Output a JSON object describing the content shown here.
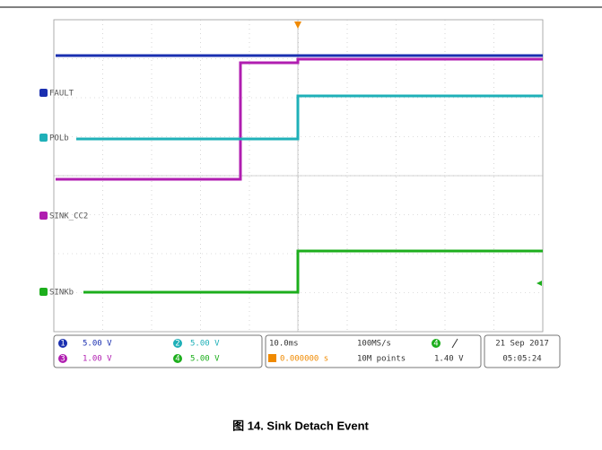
{
  "channels": [
    {
      "number": "1",
      "label": "FAULT",
      "scale": "5.00 V"
    },
    {
      "number": "2",
      "label": "POLb",
      "scale": "5.00 V"
    },
    {
      "number": "3",
      "label": "SINK_CC2",
      "scale": "1.00 V"
    },
    {
      "number": "4",
      "label": "SINKb",
      "scale": "5.00 V"
    }
  ],
  "timebase": {
    "scale": "10.0ms",
    "position": "0.000000 s",
    "sample_rate": "100MS/s",
    "record_length": "10M points"
  },
  "trigger": {
    "channel": "4",
    "level": "1.40 V"
  },
  "timestamp": {
    "date": "21 Sep 2017",
    "time": "05:05:24"
  },
  "caption": "图 14. Sink Detach Event"
}
